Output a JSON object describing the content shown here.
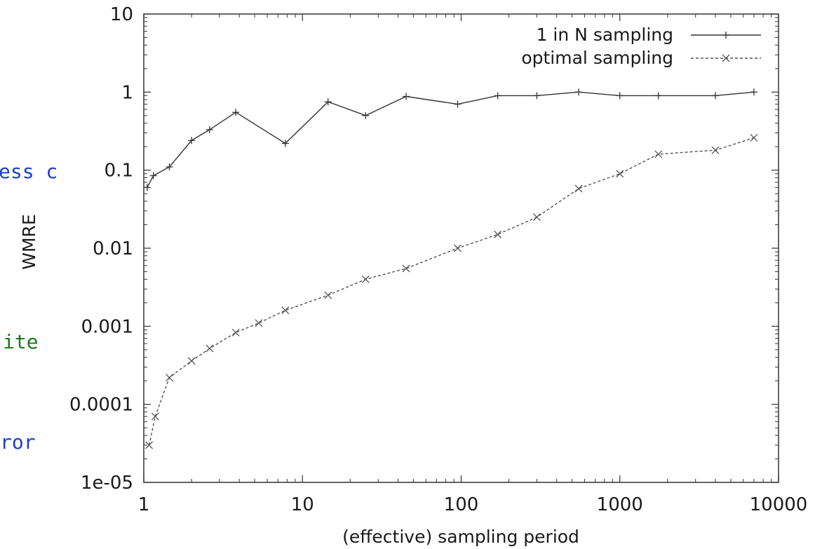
{
  "side_fragments": [
    {
      "text": "ess c",
      "color": "#1f3fc8"
    },
    {
      "text": "ite",
      "color": "#1a7a1a"
    },
    {
      "text": "ror",
      "color": "#1f3fc8"
    }
  ],
  "chart_data": {
    "type": "line",
    "xlabel": "(effective) sampling period",
    "ylabel": "WMRE",
    "xscale": "log",
    "yscale": "log",
    "xlim": [
      1,
      10000
    ],
    "ylim": [
      1e-05,
      10
    ],
    "xticks": [
      "1",
      "10",
      "100",
      "1000",
      "10000"
    ],
    "yticks": [
      "1e-05",
      "0.0001",
      "0.001",
      "0.01",
      "0.1",
      "1",
      "10"
    ],
    "grid": false,
    "legend_position": "top-right",
    "series": [
      {
        "name": "1 in N sampling",
        "style": "solid",
        "marker": "+",
        "color": "#333333",
        "x": [
          1.05,
          1.15,
          1.45,
          2,
          2.6,
          3.8,
          7.8,
          14.5,
          25,
          45,
          95,
          170,
          300,
          550,
          1000,
          1750,
          4000,
          7000
        ],
        "y": [
          0.06,
          0.085,
          0.11,
          0.24,
          0.33,
          0.55,
          0.22,
          0.75,
          0.5,
          0.88,
          0.7,
          0.9,
          0.9,
          1.0,
          0.9,
          0.9,
          0.9,
          1.0
        ]
      },
      {
        "name": "optimal sampling",
        "style": "dashed",
        "marker": "x",
        "color": "#555555",
        "x": [
          1.08,
          1.18,
          1.45,
          2,
          2.6,
          3.8,
          5.3,
          7.8,
          14.5,
          25,
          45,
          95,
          170,
          300,
          550,
          1000,
          1750,
          4000,
          7000
        ],
        "y": [
          3e-05,
          7e-05,
          0.00022,
          0.00036,
          0.00052,
          0.00083,
          0.0011,
          0.0016,
          0.0025,
          0.004,
          0.0055,
          0.01,
          0.015,
          0.025,
          0.058,
          0.09,
          0.16,
          0.18,
          0.26
        ]
      }
    ]
  }
}
